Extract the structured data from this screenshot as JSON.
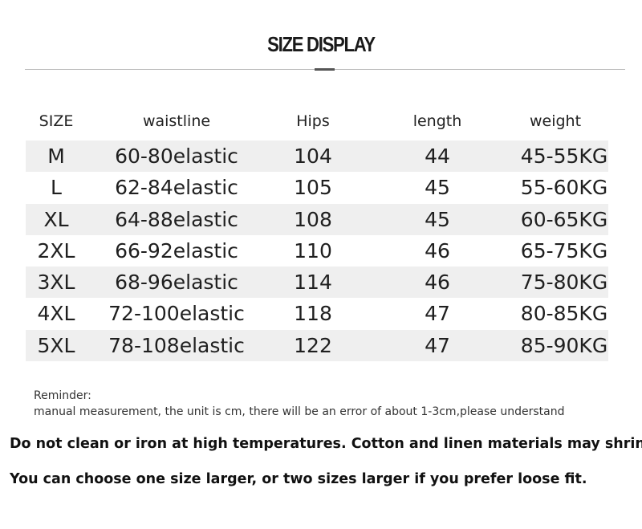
{
  "title": "SIZE DISPLAY",
  "table": {
    "headers": [
      "SIZE",
      "waistline",
      "Hips",
      "length",
      "weight"
    ],
    "rows": [
      [
        "M",
        "60-80elastic",
        "104",
        "44",
        "45-55KG"
      ],
      [
        "L",
        "62-84elastic",
        "105",
        "45",
        "55-60KG"
      ],
      [
        "XL",
        "64-88elastic",
        "108",
        "45",
        "60-65KG"
      ],
      [
        "2XL",
        "66-92elastic",
        "110",
        "46",
        "65-75KG"
      ],
      [
        "3XL",
        "68-96elastic",
        "114",
        "46",
        "75-80KG"
      ],
      [
        "4XL",
        "72-100elastic",
        "118",
        "47",
        "80-85KG"
      ],
      [
        "5XL",
        "78-108elastic",
        "122",
        "47",
        "85-90KG"
      ]
    ]
  },
  "reminder": {
    "label": "Reminder:",
    "text": "manual measurement, the unit is cm, there will be an error of about 1-3cm,please understand"
  },
  "notes": [
    "Do not clean or iron at high temperatures. Cotton and linen materials may shrink.",
    "You can choose one size larger, or two sizes larger if you prefer loose fit."
  ]
}
